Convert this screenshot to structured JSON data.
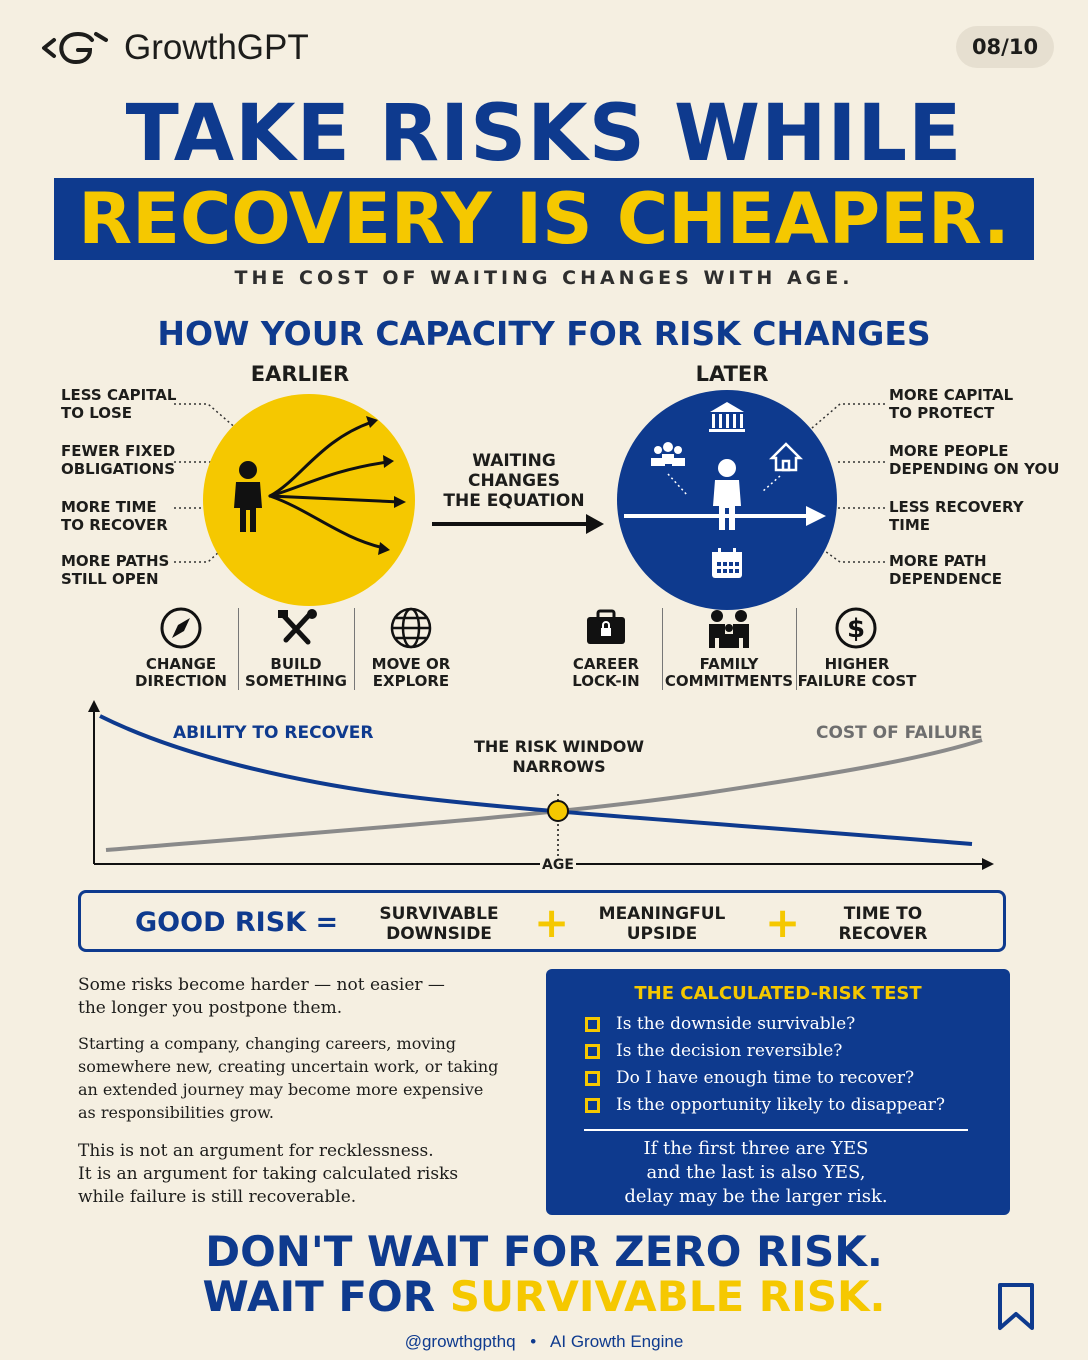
{
  "brand": {
    "name": "GrowthGPT",
    "logo_icon": "growthgpt-logo-icon"
  },
  "page_counter": "08/10",
  "headline": {
    "line1": "TAKE RISKS WHILE",
    "line2": "RECOVERY IS CHEAPER."
  },
  "subtitle": "THE COST OF WAITING CHANGES WITH AGE.",
  "section_title": "HOW YOUR CAPACITY FOR RISK CHANGES",
  "earlier": {
    "title": "EARLIER",
    "color": "#f5c800",
    "notes": [
      {
        "line1": "LESS CAPITAL",
        "line2": "TO LOSE"
      },
      {
        "line1": "FEWER FIXED",
        "line2": "OBLIGATIONS"
      },
      {
        "line1": "MORE TIME",
        "line2": "TO RECOVER"
      },
      {
        "line1": "MORE PATHS",
        "line2": "STILL OPEN"
      }
    ],
    "icons": [
      {
        "icon": "compass-icon",
        "line1": "CHANGE",
        "line2": "DIRECTION"
      },
      {
        "icon": "tools-icon",
        "line1": "BUILD",
        "line2": "SOMETHING"
      },
      {
        "icon": "globe-icon",
        "line1": "MOVE OR",
        "line2": "EXPLORE"
      }
    ]
  },
  "transition": {
    "line1": "WAITING",
    "line2": "CHANGES",
    "line3": "THE EQUATION"
  },
  "later": {
    "title": "LATER",
    "color": "#0e3a8e",
    "notes": [
      {
        "line1": "MORE CAPITAL",
        "line2": "TO PROTECT"
      },
      {
        "line1": "MORE PEOPLE",
        "line2": "DEPENDING ON YOU"
      },
      {
        "line1": "LESS RECOVERY",
        "line2": "TIME"
      },
      {
        "line1": "MORE PATH",
        "line2": "DEPENDENCE"
      }
    ],
    "icons": [
      {
        "icon": "briefcase-lock-icon",
        "line1": "CAREER",
        "line2": "LOCK-IN"
      },
      {
        "icon": "family-icon",
        "line1": "FAMILY",
        "line2": "COMMITMENTS"
      },
      {
        "icon": "dollar-icon",
        "line1": "HIGHER",
        "line2": "FAILURE COST"
      }
    ]
  },
  "curve_chart": {
    "ability_label": "ABILITY TO RECOVER",
    "cost_label": "COST OF FAILURE",
    "window_label1": "THE RISK WINDOW",
    "window_label2": "NARROWS",
    "x_label": "AGE",
    "ability_color": "#0e3a8e",
    "cost_color": "#8a8a8a",
    "marker_color": "#f5c800"
  },
  "equation": {
    "lhs": "GOOD RISK =",
    "terms": [
      {
        "line1": "SURVIVABLE",
        "line2": "DOWNSIDE"
      },
      {
        "line1": "MEANINGFUL",
        "line2": "UPSIDE"
      },
      {
        "line1": "TIME TO",
        "line2": "RECOVER"
      }
    ],
    "plus": "+"
  },
  "body": {
    "p1": [
      "Some risks become harder — not easier —",
      "the longer you postpone them."
    ],
    "p2": [
      "Starting a company, changing careers, moving",
      "somewhere new, creating uncertain work, or taking",
      "an extended journey may become more expensive",
      "as responsibilities grow."
    ],
    "p3": [
      "This is not an argument for recklessness.",
      "It is an argument for taking calculated risks",
      "while failure is still recoverable."
    ]
  },
  "test": {
    "title": "THE CALCULATED-RISK TEST",
    "items": [
      "Is the downside survivable?",
      "Is the decision reversible?",
      "Do I have enough time to recover?",
      "Is the opportunity likely to disappear?"
    ],
    "conclusion": [
      "If the first three are YES",
      "and the last is also YES,",
      "delay may be the larger risk."
    ]
  },
  "footer": {
    "line1": "DON'T WAIT FOR ZERO RISK.",
    "line2_a": "WAIT FOR ",
    "line2_b": "SURVIVABLE RISK.",
    "credit_handle": "@growthgpthq",
    "credit_sep": "•",
    "credit_tag": "AI Growth Engine",
    "bookmark_icon": "bookmark-icon"
  }
}
